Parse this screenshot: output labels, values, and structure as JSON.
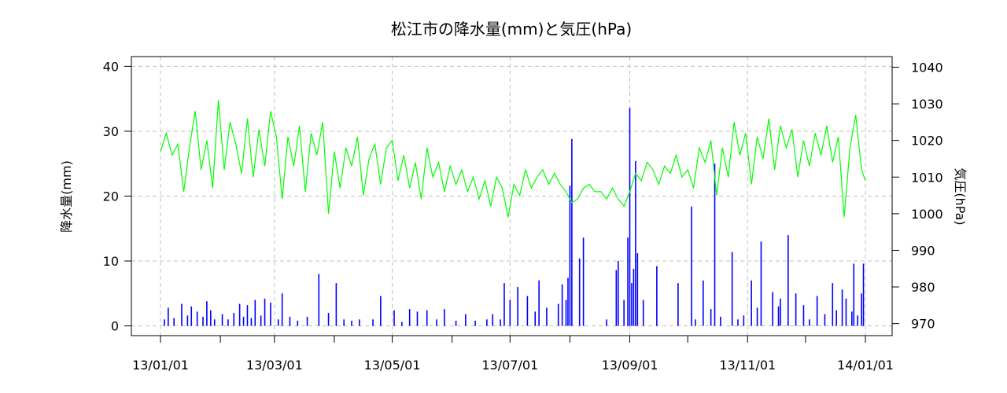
{
  "chart_data": {
    "type": "bar+line",
    "title": "松江市の降水量(mm)と気圧(hPa)",
    "x_axis": {
      "type": "date",
      "range": [
        "2013-01-01",
        "2014-01-01"
      ],
      "tick_labels": [
        {
          "date": "2013-01-01",
          "label": "13/01/01"
        },
        {
          "date": "2013-03-01",
          "label": "13/03/01"
        },
        {
          "date": "2013-05-01",
          "label": "13/05/01"
        },
        {
          "date": "2013-07-01",
          "label": "13/07/01"
        },
        {
          "date": "2013-09-01",
          "label": "13/09/01"
        },
        {
          "date": "2013-11-01",
          "label": "13/11/01"
        },
        {
          "date": "2014-01-01",
          "label": "14/01/01"
        }
      ],
      "minor_ticks": [
        "2013-02-01",
        "2013-04-01",
        "2013-06-01",
        "2013-08-01",
        "2013-10-01",
        "2013-12-01"
      ]
    },
    "y_left": {
      "label": "降水量(mm)",
      "range": [
        -1.5,
        41.5
      ],
      "ticks": [
        0,
        10,
        20,
        30,
        40
      ],
      "tick_labels": [
        "0",
        "10",
        "20",
        "30",
        "40"
      ]
    },
    "y_right": {
      "label": "気圧(hPa)",
      "range": [
        966.7,
        1042.9
      ],
      "ticks": [
        970,
        980,
        990,
        1000,
        1010,
        1020,
        1030,
        1040
      ],
      "tick_labels": [
        "970",
        "980",
        "990",
        "1000",
        "1010",
        "1020",
        "1030",
        "1040"
      ]
    },
    "grid": true,
    "series": [
      {
        "kind": "bar",
        "axis": "left",
        "color": "#0000ff",
        "data": [
          [
            "2013-01-03",
            1.0
          ],
          [
            "2013-01-05",
            2.8
          ],
          [
            "2013-01-08",
            1.2
          ],
          [
            "2013-01-12",
            3.4
          ],
          [
            "2013-01-15",
            1.6
          ],
          [
            "2013-01-17",
            3.0
          ],
          [
            "2013-01-20",
            2.2
          ],
          [
            "2013-01-23",
            1.4
          ],
          [
            "2013-01-25",
            3.8
          ],
          [
            "2013-01-27",
            2.4
          ],
          [
            "2013-01-29",
            1.0
          ],
          [
            "2013-02-02",
            1.8
          ],
          [
            "2013-02-05",
            1.0
          ],
          [
            "2013-02-08",
            2.0
          ],
          [
            "2013-02-11",
            3.4
          ],
          [
            "2013-02-13",
            1.4
          ],
          [
            "2013-02-15",
            3.2
          ],
          [
            "2013-02-17",
            1.2
          ],
          [
            "2013-02-19",
            4.0
          ],
          [
            "2013-02-22",
            1.6
          ],
          [
            "2013-02-24",
            4.2
          ],
          [
            "2013-02-27",
            3.6
          ],
          [
            "2013-03-03",
            1.0
          ],
          [
            "2013-03-05",
            5.0
          ],
          [
            "2013-03-09",
            1.4
          ],
          [
            "2013-03-13",
            0.8
          ],
          [
            "2013-03-18",
            1.4
          ],
          [
            "2013-03-24",
            8.0
          ],
          [
            "2013-03-29",
            2.0
          ],
          [
            "2013-04-02",
            6.6
          ],
          [
            "2013-04-06",
            1.0
          ],
          [
            "2013-04-10",
            0.8
          ],
          [
            "2013-04-14",
            1.0
          ],
          [
            "2013-04-21",
            1.0
          ],
          [
            "2013-04-25",
            4.6
          ],
          [
            "2013-05-02",
            2.4
          ],
          [
            "2013-05-06",
            0.6
          ],
          [
            "2013-05-10",
            2.6
          ],
          [
            "2013-05-14",
            2.2
          ],
          [
            "2013-05-19",
            2.4
          ],
          [
            "2013-05-24",
            1.0
          ],
          [
            "2013-05-28",
            2.6
          ],
          [
            "2013-06-03",
            0.8
          ],
          [
            "2013-06-08",
            1.8
          ],
          [
            "2013-06-13",
            0.8
          ],
          [
            "2013-06-19",
            1.0
          ],
          [
            "2013-06-22",
            1.8
          ],
          [
            "2013-06-26",
            1.0
          ],
          [
            "2013-06-28",
            6.6
          ],
          [
            "2013-07-01",
            4.0
          ],
          [
            "2013-07-05",
            6.0
          ],
          [
            "2013-07-10",
            4.6
          ],
          [
            "2013-07-14",
            2.2
          ],
          [
            "2013-07-16",
            7.0
          ],
          [
            "2013-07-20",
            2.8
          ],
          [
            "2013-07-26",
            3.4
          ],
          [
            "2013-07-28",
            6.4
          ],
          [
            "2013-07-30",
            4.0
          ],
          [
            "2013-07-31",
            7.4
          ],
          [
            "2013-08-01",
            21.6
          ],
          [
            "2013-08-02",
            28.8
          ],
          [
            "2013-08-06",
            10.4
          ],
          [
            "2013-08-08",
            13.6
          ],
          [
            "2013-08-20",
            1.0
          ],
          [
            "2013-08-25",
            8.6
          ],
          [
            "2013-08-26",
            10.0
          ],
          [
            "2013-08-29",
            4.0
          ],
          [
            "2013-08-31",
            13.6
          ],
          [
            "2013-09-01",
            33.6
          ],
          [
            "2013-09-02",
            6.6
          ],
          [
            "2013-09-03",
            8.8
          ],
          [
            "2013-09-04",
            25.4
          ],
          [
            "2013-09-05",
            11.2
          ],
          [
            "2013-09-08",
            4.0
          ],
          [
            "2013-09-15",
            9.2
          ],
          [
            "2013-09-26",
            6.6
          ],
          [
            "2013-10-03",
            18.4
          ],
          [
            "2013-10-05",
            1.0
          ],
          [
            "2013-10-09",
            7.0
          ],
          [
            "2013-10-13",
            2.6
          ],
          [
            "2013-10-15",
            25.0
          ],
          [
            "2013-10-18",
            1.4
          ],
          [
            "2013-10-24",
            11.4
          ],
          [
            "2013-10-27",
            1.0
          ],
          [
            "2013-10-30",
            1.6
          ],
          [
            "2013-11-03",
            7.0
          ],
          [
            "2013-11-06",
            2.8
          ],
          [
            "2013-11-08",
            13.0
          ],
          [
            "2013-11-14",
            5.2
          ],
          [
            "2013-11-17",
            3.0
          ],
          [
            "2013-11-18",
            4.2
          ],
          [
            "2013-11-22",
            14.0
          ],
          [
            "2013-11-26",
            5.0
          ],
          [
            "2013-11-30",
            3.2
          ],
          [
            "2013-12-03",
            1.0
          ],
          [
            "2013-12-07",
            4.6
          ],
          [
            "2013-12-11",
            1.8
          ],
          [
            "2013-12-15",
            6.6
          ],
          [
            "2013-12-17",
            2.4
          ],
          [
            "2013-12-20",
            5.6
          ],
          [
            "2013-12-22",
            4.2
          ],
          [
            "2013-12-25",
            2.2
          ],
          [
            "2013-12-26",
            9.6
          ],
          [
            "2013-12-28",
            1.6
          ],
          [
            "2013-12-30",
            5.0
          ],
          [
            "2013-12-31",
            9.6
          ]
        ]
      },
      {
        "kind": "line",
        "axis": "right",
        "color": "#00ff00",
        "data": [
          [
            "2013-01-01",
            1017
          ],
          [
            "2013-01-04",
            1022
          ],
          [
            "2013-01-07",
            1016
          ],
          [
            "2013-01-10",
            1019
          ],
          [
            "2013-01-13",
            1006
          ],
          [
            "2013-01-16",
            1018
          ],
          [
            "2013-01-19",
            1028
          ],
          [
            "2013-01-22",
            1012
          ],
          [
            "2013-01-25",
            1020
          ],
          [
            "2013-01-28",
            1007
          ],
          [
            "2013-01-31",
            1031
          ],
          [
            "2013-02-03",
            1012
          ],
          [
            "2013-02-06",
            1025
          ],
          [
            "2013-02-09",
            1019
          ],
          [
            "2013-02-12",
            1011
          ],
          [
            "2013-02-15",
            1026
          ],
          [
            "2013-02-18",
            1010
          ],
          [
            "2013-02-21",
            1023
          ],
          [
            "2013-02-24",
            1013
          ],
          [
            "2013-02-27",
            1028
          ],
          [
            "2013-03-02",
            1021
          ],
          [
            "2013-03-05",
            1004
          ],
          [
            "2013-03-08",
            1021
          ],
          [
            "2013-03-11",
            1013
          ],
          [
            "2013-03-14",
            1024
          ],
          [
            "2013-03-17",
            1006
          ],
          [
            "2013-03-20",
            1022
          ],
          [
            "2013-03-23",
            1016
          ],
          [
            "2013-03-26",
            1025
          ],
          [
            "2013-03-29",
            1000
          ],
          [
            "2013-04-01",
            1017
          ],
          [
            "2013-04-04",
            1007
          ],
          [
            "2013-04-07",
            1018
          ],
          [
            "2013-04-10",
            1013
          ],
          [
            "2013-04-13",
            1021
          ],
          [
            "2013-04-16",
            1005
          ],
          [
            "2013-04-19",
            1015
          ],
          [
            "2013-04-22",
            1019
          ],
          [
            "2013-04-25",
            1008
          ],
          [
            "2013-04-28",
            1018
          ],
          [
            "2013-05-01",
            1020
          ],
          [
            "2013-05-04",
            1009
          ],
          [
            "2013-05-07",
            1016
          ],
          [
            "2013-05-10",
            1007
          ],
          [
            "2013-05-13",
            1014
          ],
          [
            "2013-05-16",
            1004
          ],
          [
            "2013-05-19",
            1018
          ],
          [
            "2013-05-22",
            1010
          ],
          [
            "2013-05-25",
            1014
          ],
          [
            "2013-05-28",
            1006
          ],
          [
            "2013-05-31",
            1013
          ],
          [
            "2013-06-03",
            1008
          ],
          [
            "2013-06-06",
            1012
          ],
          [
            "2013-06-09",
            1006
          ],
          [
            "2013-06-12",
            1010
          ],
          [
            "2013-06-15",
            1004
          ],
          [
            "2013-06-18",
            1009
          ],
          [
            "2013-06-21",
            1002
          ],
          [
            "2013-06-24",
            1010
          ],
          [
            "2013-06-27",
            1007
          ],
          [
            "2013-06-30",
            999
          ],
          [
            "2013-07-03",
            1008
          ],
          [
            "2013-07-06",
            1005
          ],
          [
            "2013-07-09",
            1012
          ],
          [
            "2013-07-12",
            1007
          ],
          [
            "2013-07-15",
            1010
          ],
          [
            "2013-07-18",
            1012
          ],
          [
            "2013-07-21",
            1008
          ],
          [
            "2013-07-24",
            1011
          ],
          [
            "2013-07-27",
            1008
          ],
          [
            "2013-07-30",
            1006
          ],
          [
            "2013-08-02",
            1003
          ],
          [
            "2013-08-05",
            1004
          ],
          [
            "2013-08-08",
            1007
          ],
          [
            "2013-08-11",
            1008
          ],
          [
            "2013-08-14",
            1006
          ],
          [
            "2013-08-17",
            1006
          ],
          [
            "2013-08-20",
            1004
          ],
          [
            "2013-08-23",
            1007
          ],
          [
            "2013-08-26",
            1004
          ],
          [
            "2013-08-29",
            1002
          ],
          [
            "2013-09-01",
            1006
          ],
          [
            "2013-09-04",
            1011
          ],
          [
            "2013-09-07",
            1009
          ],
          [
            "2013-09-10",
            1014
          ],
          [
            "2013-09-13",
            1012
          ],
          [
            "2013-09-16",
            1008
          ],
          [
            "2013-09-19",
            1013
          ],
          [
            "2013-09-22",
            1011
          ],
          [
            "2013-09-25",
            1016
          ],
          [
            "2013-09-28",
            1010
          ],
          [
            "2013-10-01",
            1012
          ],
          [
            "2013-10-04",
            1007
          ],
          [
            "2013-10-07",
            1018
          ],
          [
            "2013-10-10",
            1014
          ],
          [
            "2013-10-13",
            1020
          ],
          [
            "2013-10-16",
            1005
          ],
          [
            "2013-10-19",
            1018
          ],
          [
            "2013-10-22",
            1010
          ],
          [
            "2013-10-25",
            1025
          ],
          [
            "2013-10-28",
            1016
          ],
          [
            "2013-10-31",
            1022
          ],
          [
            "2013-11-03",
            1008
          ],
          [
            "2013-11-06",
            1021
          ],
          [
            "2013-11-09",
            1015
          ],
          [
            "2013-11-12",
            1026
          ],
          [
            "2013-11-15",
            1012
          ],
          [
            "2013-11-18",
            1024
          ],
          [
            "2013-11-21",
            1018
          ],
          [
            "2013-11-24",
            1023
          ],
          [
            "2013-11-27",
            1010
          ],
          [
            "2013-11-30",
            1020
          ],
          [
            "2013-12-03",
            1013
          ],
          [
            "2013-12-06",
            1022
          ],
          [
            "2013-12-09",
            1016
          ],
          [
            "2013-12-12",
            1024
          ],
          [
            "2013-12-15",
            1014
          ],
          [
            "2013-12-18",
            1021
          ],
          [
            "2013-12-21",
            999
          ],
          [
            "2013-12-24",
            1018
          ],
          [
            "2013-12-27",
            1027
          ],
          [
            "2013-12-30",
            1012
          ],
          [
            "2014-01-01",
            1009
          ]
        ]
      }
    ]
  }
}
